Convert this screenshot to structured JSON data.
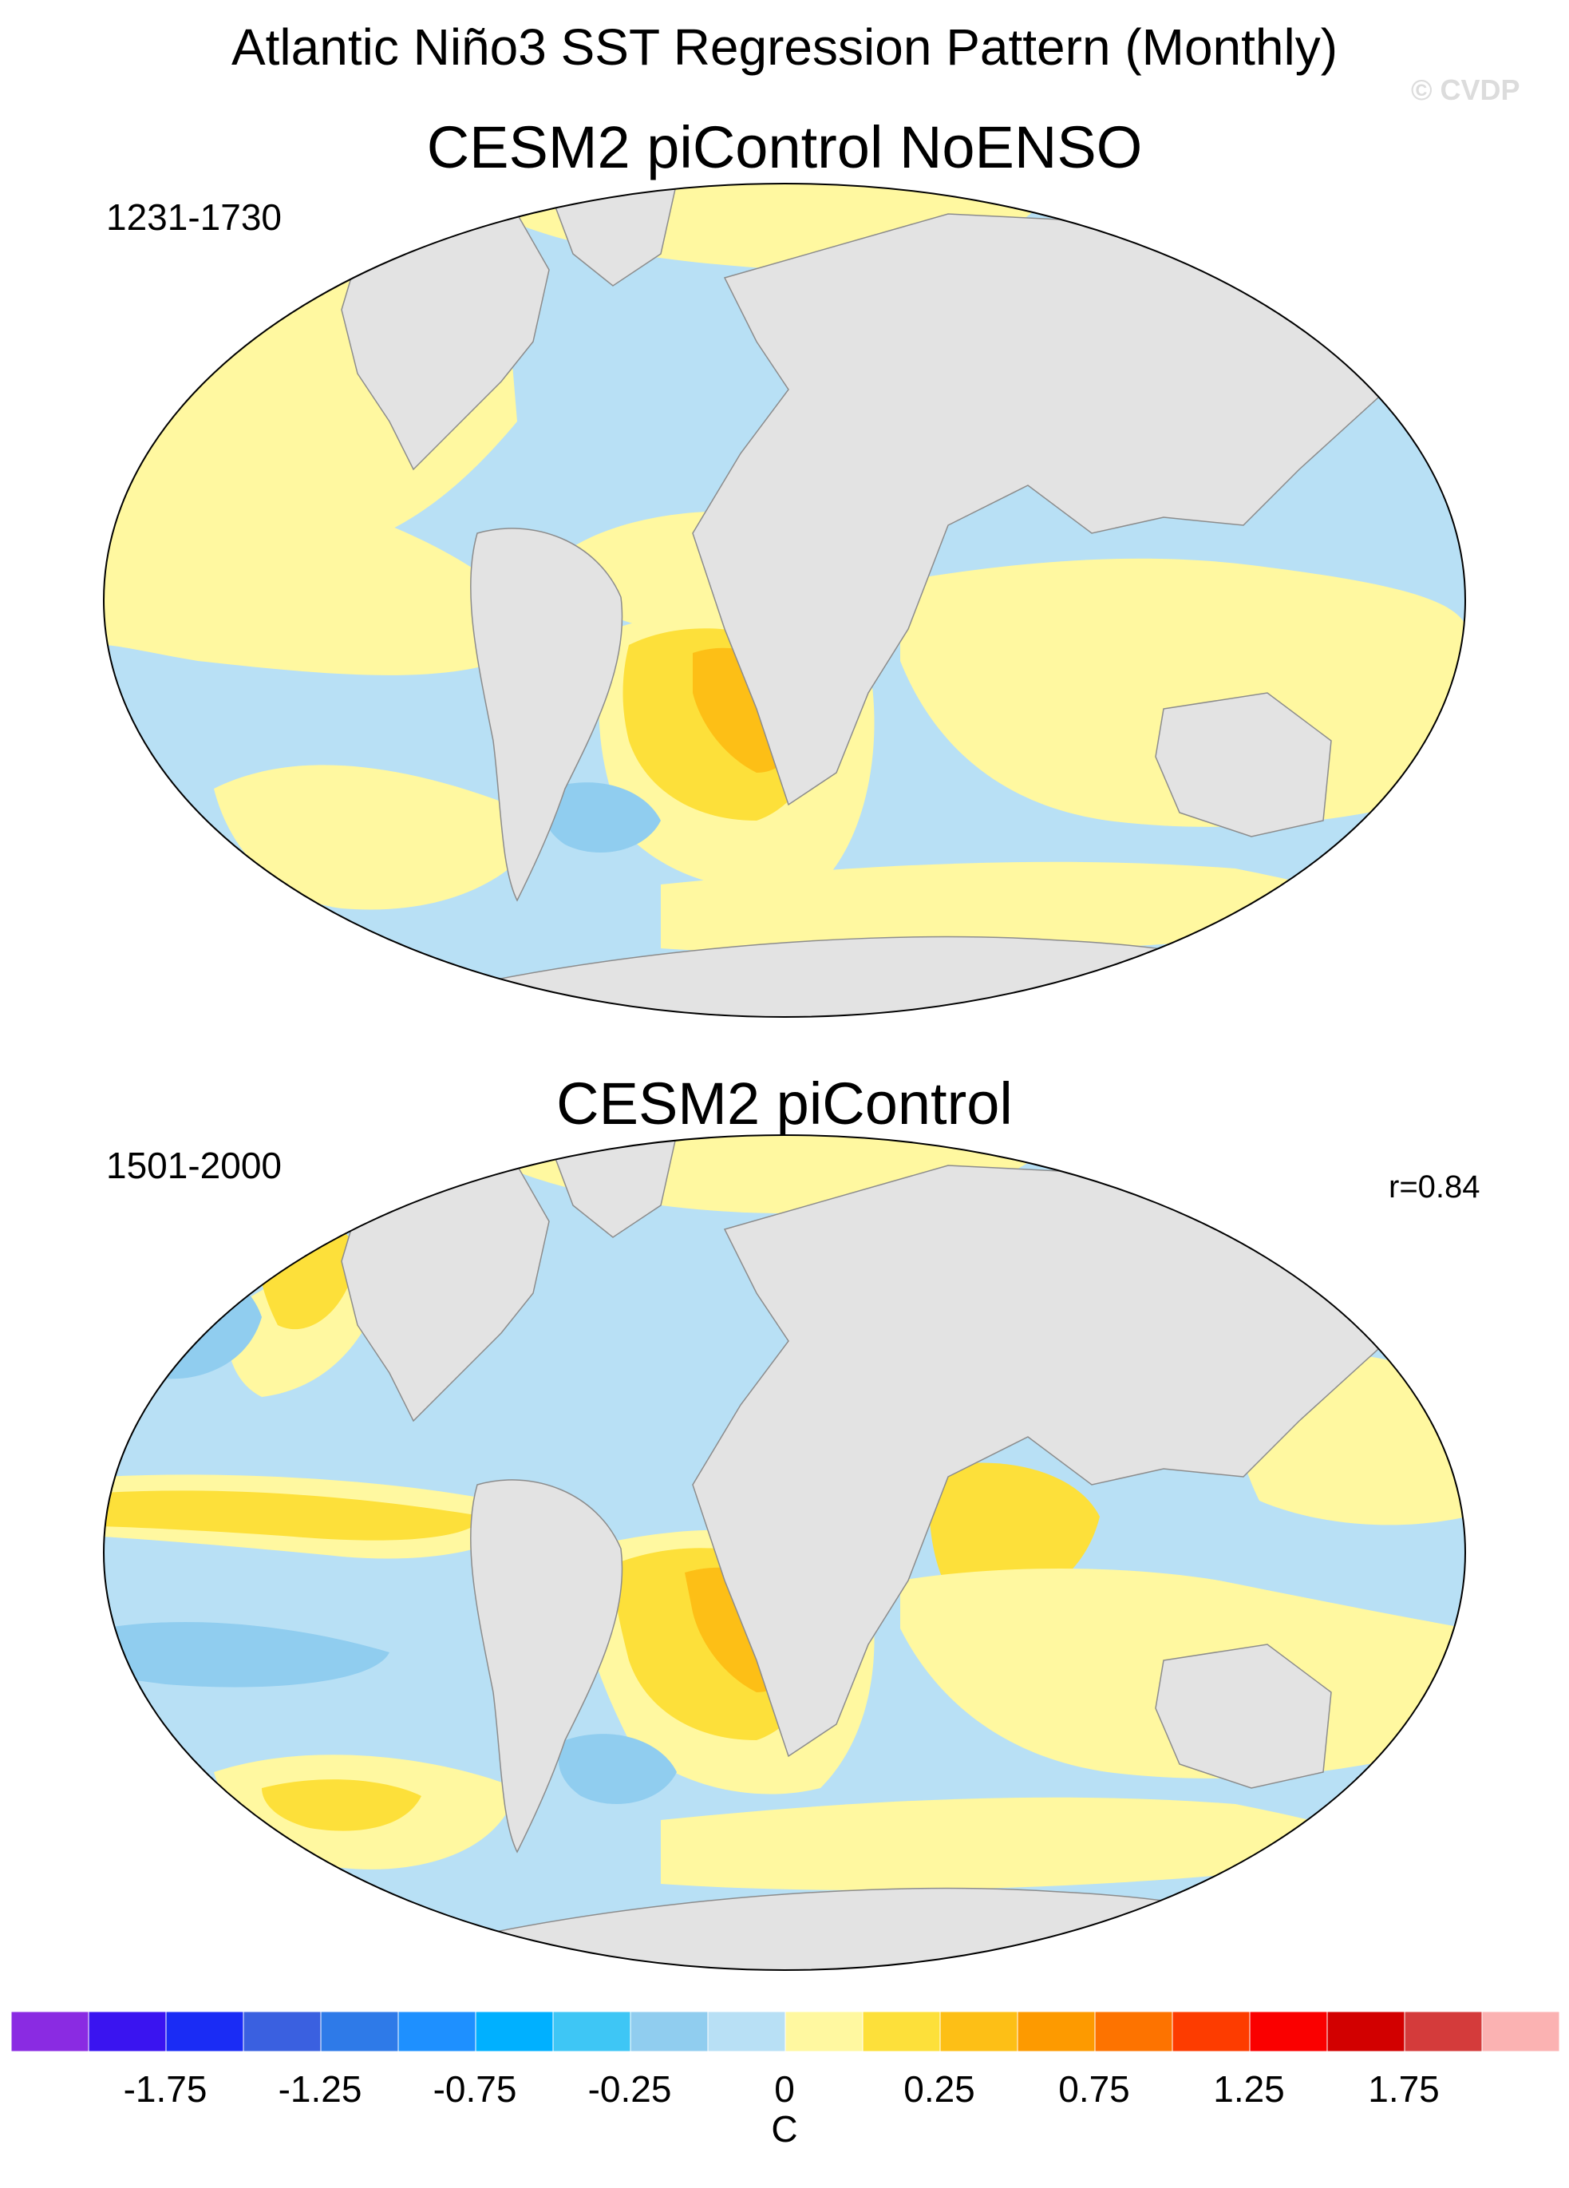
{
  "title": "Atlantic Niño3 SST Regression Pattern (Monthly)",
  "watermark": "© CVDP",
  "panels": [
    {
      "title": "CESM2 piControl NoENSO",
      "period": "1231-1730",
      "corr": ""
    },
    {
      "title": "CESM2 piControl",
      "period": "1501-2000",
      "corr": "r=0.84"
    }
  ],
  "colorbar": {
    "unit": "C",
    "tick_labels": [
      "-1.75",
      "-1.25",
      "-0.75",
      "-0.25",
      "0",
      "0.25",
      "0.75",
      "1.25",
      "1.75"
    ],
    "colors": [
      "#8a2be2",
      "#3a14f0",
      "#1a2cf5",
      "#3a60e0",
      "#2e7ae8",
      "#1e90ff",
      "#00b0ff",
      "#3ec6f5",
      "#90cdef",
      "#b8e0f5",
      "#fff8a0",
      "#fde03a",
      "#fdbf16",
      "#fd9a00",
      "#fd7300",
      "#fd3c00",
      "#fa0000",
      "#d20000",
      "#d43b3b",
      "#fbb2b2"
    ]
  },
  "legend_colors": {
    "land": "#e3e3e3",
    "light_blue": "#b8e0f5",
    "blue": "#90cdef",
    "light_yellow": "#fff8a0",
    "yellow": "#fde03a",
    "orange": "#fdbf16"
  }
}
